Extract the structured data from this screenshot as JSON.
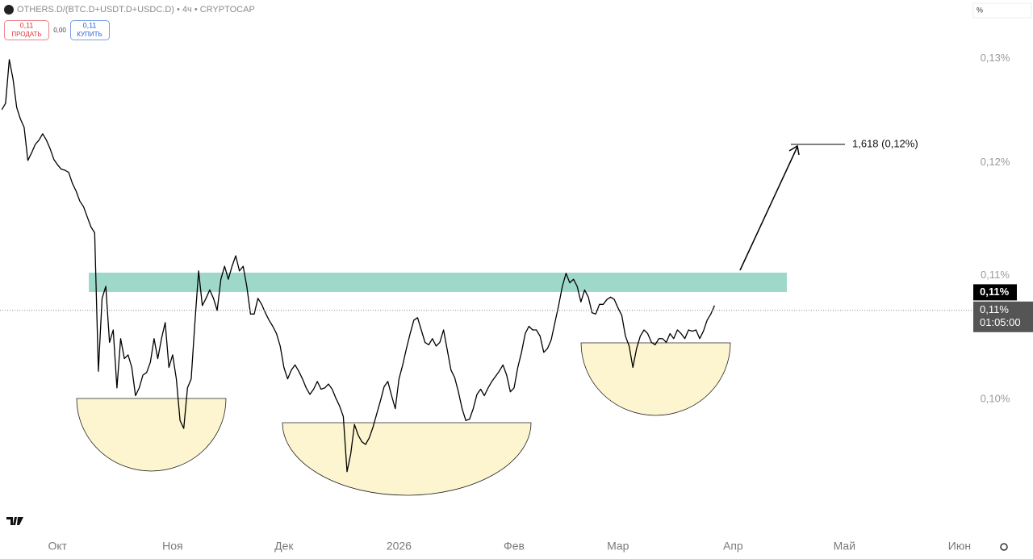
{
  "toolbar": {
    "sell_price": "0,11",
    "sell_label": "ПРОДАТЬ",
    "spread": "0,00",
    "buy_price": "0,11",
    "buy_label": "КУПИТЬ",
    "scale_mode": "%"
  },
  "chart_data": {
    "type": "line",
    "title": "OTHERS.D/(BTC.D+USDT.D+USDC.D) • 4ч • CRYPTOCAP",
    "color": "#000000",
    "log_scale": true,
    "grid": false,
    "ylim": [
      0.09,
      0.136
    ],
    "yticks": [
      {
        "value": 0.13,
        "label": "0,13%"
      },
      {
        "value": 0.12,
        "label": "0,12%"
      },
      {
        "value": 0.11,
        "label": "0,11%"
      },
      {
        "value": 0.1,
        "label": "0,10%"
      }
    ],
    "annotation": "1,618 (0,12%)",
    "price_labels": [
      {
        "value": 0.1086,
        "label": "0,11%"
      },
      {
        "value": 0.1071,
        "label": "0,11%"
      }
    ],
    "countdown": "01:05:00",
    "categories": [
      null,
      null,
      null,
      null,
      null,
      null,
      null,
      null,
      null,
      null,
      null,
      null,
      null,
      null,
      null,
      "Окт",
      null,
      null,
      null,
      null,
      null,
      null,
      null,
      null,
      null,
      null,
      null,
      null,
      null,
      null,
      null,
      null,
      null,
      null,
      null,
      null,
      null,
      null,
      null,
      null,
      null,
      null,
      null,
      null,
      null,
      null,
      "Ноя",
      null,
      null,
      null,
      null,
      null,
      null,
      null,
      null,
      null,
      null,
      null,
      null,
      null,
      null,
      null,
      null,
      null,
      null,
      null,
      null,
      null,
      null,
      null,
      null,
      null,
      null,
      null,
      null,
      null,
      "Дек",
      null,
      null,
      null,
      null,
      null,
      null,
      null,
      null,
      null,
      null,
      null,
      null,
      null,
      null,
      null,
      null,
      null,
      null,
      null,
      null,
      null,
      null,
      null,
      null,
      null,
      null,
      null,
      null,
      null,
      null,
      "2026",
      null,
      null,
      null,
      null,
      null,
      null,
      null,
      null,
      null,
      null,
      null,
      null,
      null,
      null,
      null,
      null,
      null,
      null,
      null,
      null,
      null,
      null,
      null,
      null,
      null,
      null,
      null,
      null,
      null,
      null,
      "Фев",
      null,
      null,
      null,
      null,
      null,
      null,
      null,
      null,
      null,
      null,
      null,
      null,
      null,
      null,
      null,
      null,
      null,
      null,
      null,
      null,
      null,
      null,
      null,
      null,
      null,
      null,
      null,
      "Мар",
      null,
      null,
      null,
      null,
      null,
      null,
      null,
      null,
      null,
      null,
      null,
      null,
      null,
      null,
      null,
      null,
      null,
      null,
      null,
      null,
      null,
      null,
      null,
      null,
      null,
      null,
      null,
      null,
      null,
      null,
      "Апр",
      null,
      null,
      null,
      null,
      null,
      null,
      null,
      null,
      null,
      null,
      null,
      null,
      null,
      null,
      null,
      null,
      null,
      null,
      null,
      null,
      null,
      null,
      null,
      null,
      null,
      null,
      null,
      null,
      null,
      "Май",
      null,
      null,
      null,
      null,
      null,
      null,
      null,
      null,
      null,
      null,
      null,
      null,
      null,
      null,
      null,
      null,
      null,
      null,
      null,
      null,
      null,
      null,
      null,
      null,
      null,
      null,
      null,
      null,
      null,
      null,
      "Июн",
      null,
      null,
      null
    ],
    "values": [
      0.125,
      0.1256,
      0.1299,
      0.128,
      0.1252,
      0.1241,
      0.1233,
      0.1202,
      0.1209,
      0.1217,
      0.1221,
      0.1227,
      0.1221,
      0.1213,
      0.1203,
      0.1198,
      0.1194,
      0.1193,
      0.1191,
      0.1181,
      0.1174,
      0.1165,
      0.116,
      0.1151,
      0.1142,
      0.1137,
      0.1022,
      0.1081,
      0.1091,
      0.1045,
      0.1055,
      0.1009,
      0.1048,
      0.1032,
      0.1035,
      0.1025,
      0.1003,
      0.1009,
      0.1019,
      0.1021,
      0.1029,
      0.1048,
      0.1032,
      0.1048,
      0.1061,
      0.1025,
      0.1035,
      0.1016,
      0.0984,
      0.0978,
      0.1009,
      0.1016,
      0.1061,
      0.1104,
      0.1075,
      0.1081,
      0.1088,
      0.1081,
      0.1071,
      0.1097,
      0.1108,
      0.1097,
      0.1108,
      0.1117,
      0.1104,
      0.1108,
      0.1091,
      0.1068,
      0.1068,
      0.1081,
      0.1076,
      0.1069,
      0.1063,
      0.1058,
      0.1052,
      0.1042,
      0.1025,
      0.1016,
      0.1023,
      0.1027,
      0.1022,
      0.1016,
      0.1009,
      0.1004,
      0.1008,
      0.1014,
      0.1008,
      0.1009,
      0.1012,
      0.1008,
      0.1001,
      0.0995,
      0.0987,
      0.0946,
      0.0959,
      0.0981,
      0.0973,
      0.0968,
      0.0966,
      0.0971,
      0.0979,
      0.0989,
      0.0999,
      0.101,
      0.1014,
      0.1003,
      0.0993,
      0.1016,
      0.1027,
      0.104,
      0.1052,
      0.1063,
      0.1065,
      0.1055,
      0.1045,
      0.1043,
      0.1048,
      0.1042,
      0.1045,
      0.1055,
      0.1039,
      0.1023,
      0.1017,
      0.1006,
      0.0993,
      0.0984,
      0.0985,
      0.0993,
      0.1004,
      0.1008,
      0.1003,
      0.1009,
      0.1014,
      0.1018,
      0.1022,
      0.1027,
      0.1019,
      0.1006,
      0.1009,
      0.1025,
      0.1037,
      0.1052,
      0.1058,
      0.1055,
      0.1055,
      0.105,
      0.1037,
      0.104,
      0.1047,
      0.1061,
      0.1075,
      0.1091,
      0.1102,
      0.1094,
      0.1097,
      0.1091,
      0.1078,
      0.1088,
      0.1082,
      0.1069,
      0.1068,
      0.1076,
      0.1076,
      0.108,
      0.1082,
      0.108,
      0.1073,
      0.1067,
      0.105,
      0.1042,
      0.1025,
      0.104,
      0.105,
      0.1055,
      0.1052,
      0.1045,
      0.1043,
      0.1048,
      0.1048,
      0.1045,
      0.1052,
      0.1048,
      0.1055,
      0.1052,
      0.1048,
      0.1055,
      0.1054,
      0.1055,
      0.1048,
      0.1054,
      0.1063,
      0.1068,
      0.1075,
      null,
      null,
      null,
      null,
      null,
      null,
      null,
      null,
      null,
      null,
      null,
      null,
      null,
      null,
      null,
      null,
      null,
      null,
      null,
      null,
      null,
      null,
      null,
      null,
      null,
      null,
      null,
      null,
      null,
      null,
      null,
      null,
      null,
      null,
      null,
      null,
      null,
      null,
      null,
      null,
      null,
      null,
      null,
      null,
      null,
      null,
      null,
      null,
      null,
      null,
      null,
      null,
      null,
      null,
      null,
      null,
      null,
      null,
      null,
      null,
      null,
      null,
      null,
      null,
      null,
      null,
      null,
      null,
      null
    ]
  }
}
